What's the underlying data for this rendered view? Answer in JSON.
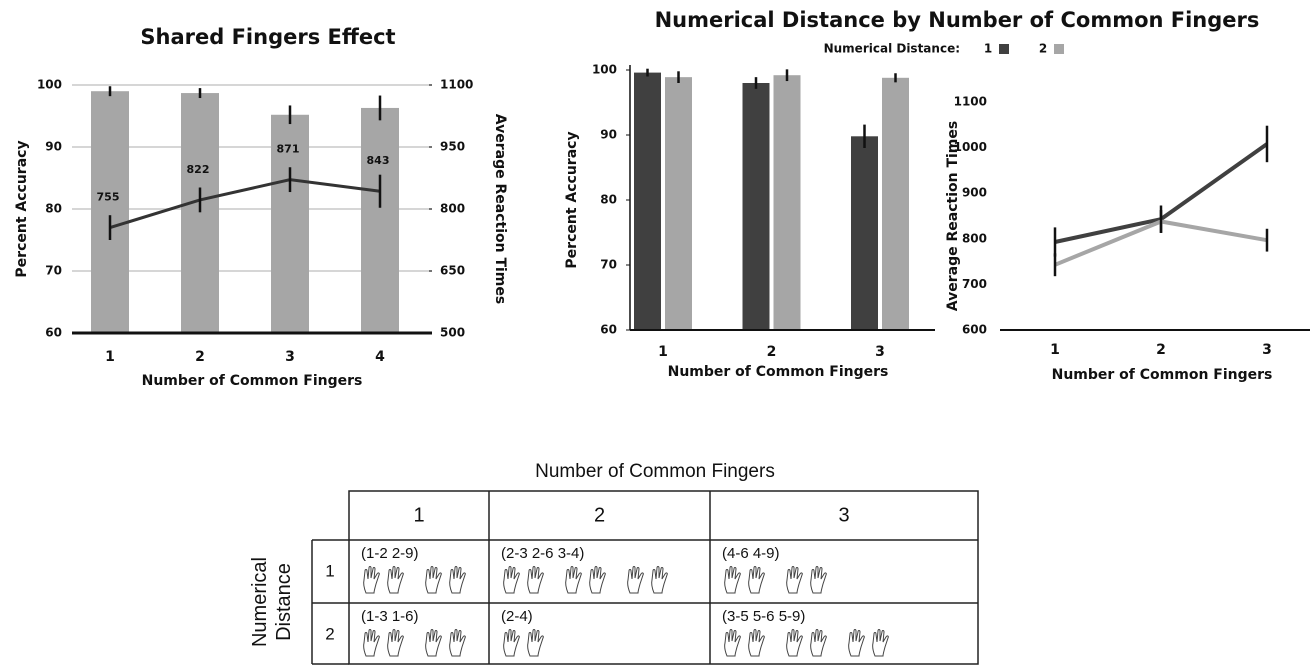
{
  "chart_data": [
    {
      "type": "bar",
      "title": "Shared Fingers Effect",
      "xlabel": "Number of Common Fingers",
      "ylabel": "Percent Accuracy",
      "y2label": "Average Reaction Times",
      "categories": [
        "1",
        "2",
        "3",
        "4"
      ],
      "series": [
        {
          "color": "#a6a6a6",
          "values": [
            99,
            98.7,
            95.2,
            96.3
          ],
          "errors": [
            0.8,
            0.8,
            1.5,
            2
          ]
        },
        {
          "type": "line",
          "axis": "y2",
          "color": "#333333",
          "values": [
            755,
            822,
            871,
            843
          ],
          "errors": [
            30,
            30,
            30,
            40
          ]
        }
      ],
      "ylim": [
        60,
        100
      ],
      "yticks": [
        60,
        70,
        80,
        90,
        100
      ],
      "y2lim": [
        500,
        1100
      ],
      "y2ticks": [
        500,
        650,
        800,
        950,
        1100
      ],
      "grid": true
    },
    {
      "type": "bar",
      "title": "Numerical Distance by Number of Common Fingers",
      "legend_title": "Numerical Distance:",
      "xlabel": "Number of Common Fingers",
      "ylabel": "Percent Accuracy",
      "categories": [
        "1",
        "2",
        "3"
      ],
      "series": [
        {
          "name": "1",
          "color": "#404040",
          "values": [
            99.6,
            98,
            89.8
          ],
          "errors": [
            0.6,
            0.9,
            1.8
          ]
        },
        {
          "name": "2",
          "color": "#a6a6a6",
          "values": [
            98.9,
            99.2,
            98.8
          ],
          "errors": [
            0.9,
            0.9,
            0.7
          ]
        }
      ],
      "ylim": [
        60,
        100
      ],
      "yticks": [
        60,
        70,
        80,
        90,
        100
      ],
      "grid": false
    },
    {
      "type": "line",
      "xlabel": "Number of Common Fingers",
      "ylabel": "Average Reaction Times",
      "categories": [
        "1",
        "2",
        "3"
      ],
      "series": [
        {
          "color": "#404040",
          "values": [
            793,
            843,
            1008
          ],
          "errors": [
            32,
            30,
            40
          ]
        },
        {
          "color": "#a6a6a6",
          "values": [
            743,
            838,
            797
          ],
          "errors": [
            25,
            25,
            25
          ]
        }
      ],
      "ylim": [
        600,
        1100
      ],
      "yticks": [
        600,
        700,
        800,
        900,
        1000,
        1100
      ],
      "grid": false
    }
  ],
  "table": {
    "title": "Number of Common Fingers",
    "row_header": "Numerical Distance",
    "columns": [
      "1",
      "2",
      "3"
    ],
    "rows": [
      {
        "label": "1",
        "cells": [
          "(1-2 2-9)",
          "(2-3 2-6 3-4)",
          "(4-6 4-9)"
        ]
      },
      {
        "label": "2",
        "cells": [
          "(1-3 1-6)",
          "(2-4)",
          "(3-5 5-6 5-9)"
        ]
      }
    ]
  }
}
